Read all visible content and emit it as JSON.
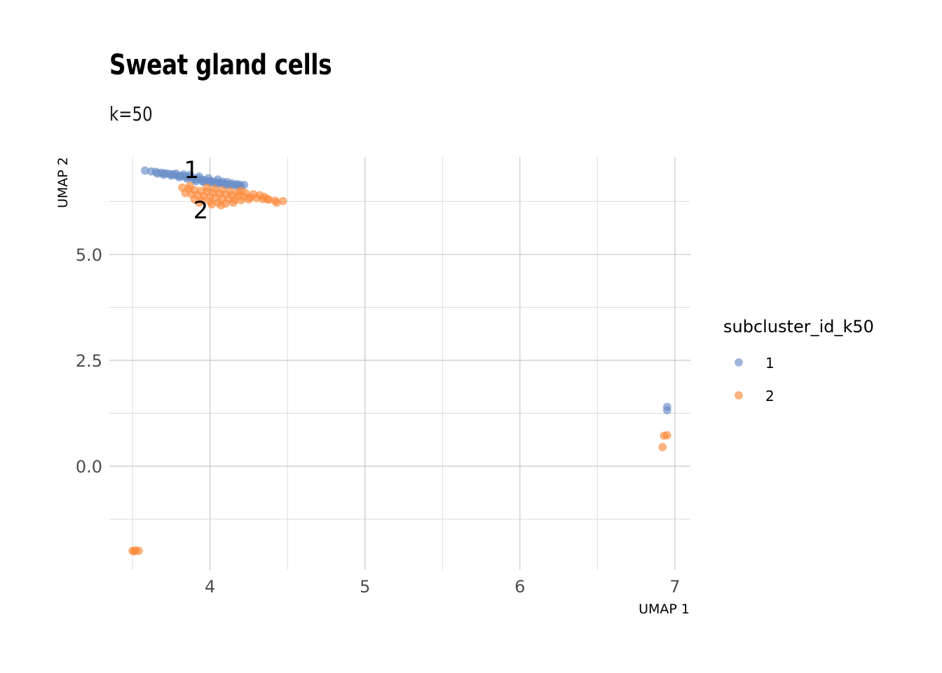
{
  "chart_data": {
    "type": "scatter",
    "title": "Sweat gland cells",
    "subtitle": "k=50",
    "xlabel": "UMAP 1",
    "ylabel": "UMAP 2",
    "xlim": [
      3.35,
      7.1
    ],
    "ylim": [
      -2.45,
      7.3
    ],
    "x_ticks": [
      4,
      5,
      6,
      7
    ],
    "y_ticks": [
      0.0,
      2.5,
      5.0
    ],
    "x_minor": [
      3.5,
      4.5,
      5.5,
      6.5
    ],
    "y_minor": [
      -1.25,
      1.25,
      3.75,
      6.25
    ],
    "grid": true,
    "legend": {
      "title": "subcluster_id_k50",
      "placement": "right",
      "entries": [
        {
          "label": "1",
          "color": "#6c8fca"
        },
        {
          "label": "2",
          "color": "#fd8b3c"
        }
      ]
    },
    "cluster_labels": [
      {
        "text": "1",
        "x": 3.88,
        "y": 7.0
      },
      {
        "text": "2",
        "x": 3.94,
        "y": 6.05
      }
    ],
    "series": [
      {
        "name": "1",
        "color": "#6c8fca",
        "points": [
          [
            3.58,
            6.98
          ],
          [
            3.62,
            6.96
          ],
          [
            3.65,
            6.95
          ],
          [
            3.68,
            6.93
          ],
          [
            3.7,
            6.92
          ],
          [
            3.72,
            6.91
          ],
          [
            3.74,
            6.9
          ],
          [
            3.76,
            6.89
          ],
          [
            3.78,
            6.87
          ],
          [
            3.8,
            6.86
          ],
          [
            3.82,
            6.85
          ],
          [
            3.84,
            6.84
          ],
          [
            3.86,
            6.83
          ],
          [
            3.88,
            6.81
          ],
          [
            3.9,
            6.8
          ],
          [
            3.92,
            6.79
          ],
          [
            3.94,
            6.77
          ],
          [
            3.96,
            6.76
          ],
          [
            3.98,
            6.74
          ],
          [
            4.0,
            6.73
          ],
          [
            4.02,
            6.72
          ],
          [
            4.04,
            6.7
          ],
          [
            4.06,
            6.69
          ],
          [
            4.08,
            6.68
          ],
          [
            4.1,
            6.66
          ],
          [
            4.12,
            6.65
          ],
          [
            4.14,
            6.64
          ],
          [
            4.16,
            6.63
          ],
          [
            4.18,
            6.62
          ],
          [
            4.2,
            6.61
          ],
          [
            3.75,
            6.86
          ],
          [
            3.8,
            6.82
          ],
          [
            3.85,
            6.79
          ],
          [
            3.9,
            6.76
          ],
          [
            3.95,
            6.73
          ],
          [
            4.0,
            6.7
          ],
          [
            4.05,
            6.67
          ],
          [
            4.1,
            6.64
          ],
          [
            3.7,
            6.88
          ],
          [
            3.66,
            6.91
          ],
          [
            3.87,
            6.88
          ],
          [
            3.93,
            6.84
          ],
          [
            3.99,
            6.8
          ],
          [
            4.05,
            6.77
          ],
          [
            4.11,
            6.71
          ],
          [
            4.17,
            6.66
          ],
          [
            4.22,
            6.64
          ],
          [
            3.78,
            6.91
          ],
          [
            3.83,
            6.89
          ],
          [
            3.96,
            6.71
          ],
          [
            4.03,
            6.68
          ],
          [
            4.08,
            6.72
          ],
          [
            4.14,
            6.68
          ],
          [
            4.19,
            6.65
          ],
          [
            3.91,
            6.73
          ],
          [
            6.95,
            1.4
          ],
          [
            6.95,
            1.32
          ]
        ]
      },
      {
        "name": "2",
        "color": "#fd8b3c",
        "points": [
          [
            3.82,
            6.58
          ],
          [
            3.86,
            6.55
          ],
          [
            3.9,
            6.52
          ],
          [
            3.94,
            6.5
          ],
          [
            3.98,
            6.48
          ],
          [
            4.02,
            6.46
          ],
          [
            4.06,
            6.44
          ],
          [
            4.1,
            6.42
          ],
          [
            4.14,
            6.4
          ],
          [
            4.18,
            6.38
          ],
          [
            4.22,
            6.36
          ],
          [
            4.26,
            6.35
          ],
          [
            4.3,
            6.33
          ],
          [
            4.34,
            6.31
          ],
          [
            4.38,
            6.29
          ],
          [
            4.42,
            6.27
          ],
          [
            4.47,
            6.26
          ],
          [
            3.84,
            6.45
          ],
          [
            3.88,
            6.42
          ],
          [
            3.92,
            6.4
          ],
          [
            3.96,
            6.38
          ],
          [
            4.0,
            6.36
          ],
          [
            4.04,
            6.34
          ],
          [
            4.08,
            6.32
          ],
          [
            4.12,
            6.3
          ],
          [
            4.16,
            6.29
          ],
          [
            4.2,
            6.28
          ],
          [
            3.9,
            6.3
          ],
          [
            3.95,
            6.28
          ],
          [
            4.0,
            6.25
          ],
          [
            4.05,
            6.22
          ],
          [
            4.1,
            6.2
          ],
          [
            4.15,
            6.22
          ],
          [
            4.25,
            6.3
          ],
          [
            4.35,
            6.36
          ],
          [
            4.43,
            6.22
          ],
          [
            4.28,
            6.42
          ],
          [
            4.32,
            6.4
          ],
          [
            3.98,
            6.58
          ],
          [
            4.03,
            6.55
          ],
          [
            4.08,
            6.52
          ],
          [
            4.13,
            6.49
          ],
          [
            4.18,
            6.47
          ],
          [
            4.23,
            6.45
          ],
          [
            3.87,
            6.62
          ],
          [
            4.01,
            6.18
          ],
          [
            4.07,
            6.16
          ],
          [
            3.93,
            6.22
          ],
          [
            4.2,
            6.5
          ],
          [
            4.37,
            6.31
          ],
          [
            3.5,
            -2.0
          ],
          [
            3.52,
            -1.99
          ],
          [
            3.54,
            -2.0
          ],
          [
            3.51,
            -2.01
          ],
          [
            6.93,
            0.72
          ],
          [
            6.95,
            0.73
          ],
          [
            6.92,
            0.45
          ]
        ]
      }
    ]
  }
}
